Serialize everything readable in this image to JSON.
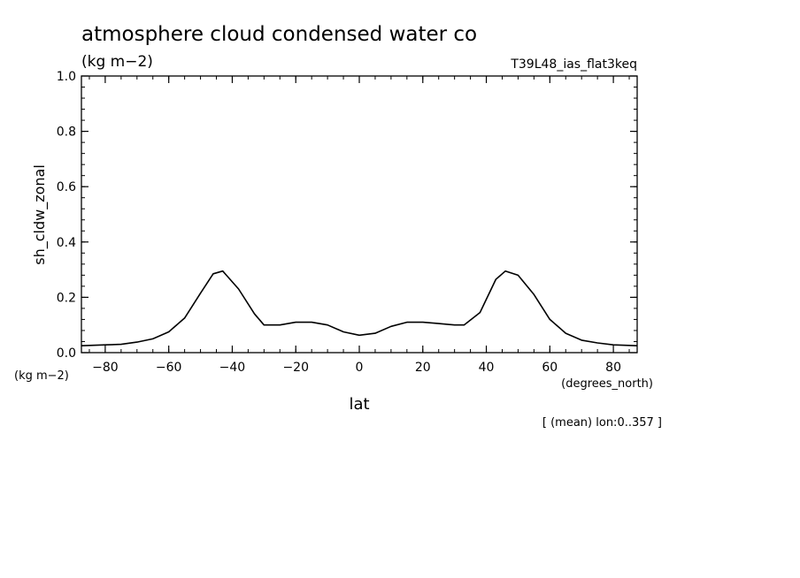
{
  "title": "atmosphere cloud condensed water co",
  "units": "(kg m−2)",
  "run_label": "T39L48_ias_flat3keq",
  "y_unit_label": "(kg m−2)",
  "x_unit_label": "(degrees_north)",
  "footnote": "[ (mean) lon:0..357 ]",
  "chart_data": {
    "type": "line",
    "xlabel": "lat",
    "ylabel": "sh_cldw_zonal",
    "xlim": [
      -87.5,
      87.5
    ],
    "ylim": [
      0.0,
      1.0
    ],
    "x_ticks": [
      -80,
      -60,
      -40,
      -20,
      0,
      20,
      40,
      60,
      80
    ],
    "x_tick_labels": [
      "−80",
      "−60",
      "−40",
      "−20",
      "0",
      "20",
      "40",
      "60",
      "80"
    ],
    "y_ticks": [
      0.0,
      0.2,
      0.4,
      0.6,
      0.8,
      1.0
    ],
    "y_tick_labels": [
      "0.0",
      "0.2",
      "0.4",
      "0.6",
      "0.8",
      "1.0"
    ],
    "grid": false,
    "series": [
      {
        "x": [
          -87.5,
          -80,
          -75,
          -70,
          -65,
          -60,
          -55,
          -50,
          -46,
          -43,
          -38,
          -33,
          -30,
          -25,
          -20,
          -15,
          -10,
          -5,
          0,
          5,
          10,
          15,
          20,
          25,
          30,
          33,
          38,
          43,
          46,
          50,
          55,
          60,
          65,
          70,
          75,
          80,
          87.5
        ],
        "y": [
          0.025,
          0.028,
          0.03,
          0.038,
          0.05,
          0.075,
          0.125,
          0.215,
          0.285,
          0.295,
          0.23,
          0.14,
          0.1,
          0.1,
          0.11,
          0.11,
          0.1,
          0.075,
          0.063,
          0.07,
          0.095,
          0.11,
          0.11,
          0.105,
          0.1,
          0.1,
          0.145,
          0.265,
          0.295,
          0.28,
          0.21,
          0.12,
          0.07,
          0.045,
          0.035,
          0.028,
          0.025
        ]
      }
    ]
  }
}
